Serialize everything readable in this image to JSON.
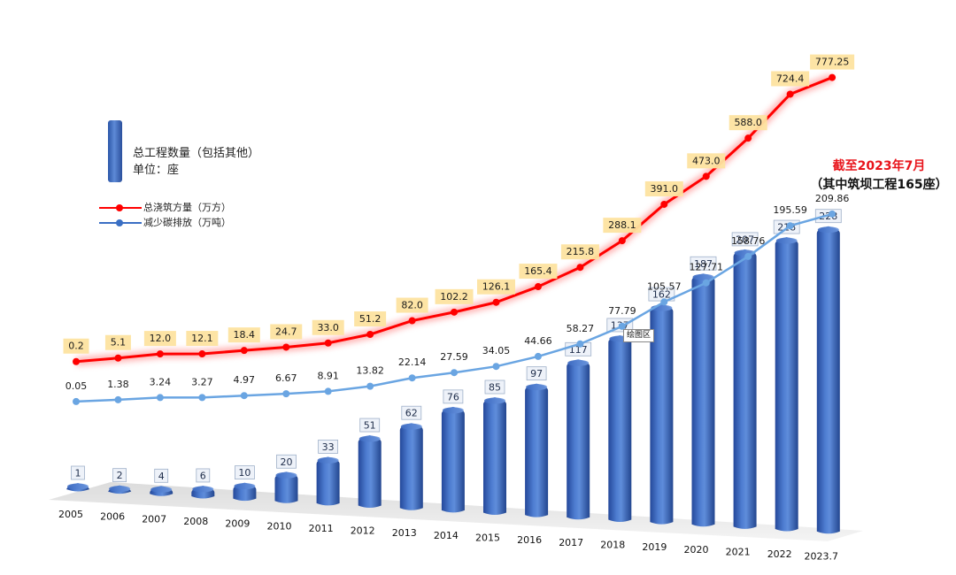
{
  "chart_data": {
    "type": "bar",
    "categories": [
      "2005",
      "2006",
      "2007",
      "2008",
      "2009",
      "2010",
      "2011",
      "2012",
      "2013",
      "2014",
      "2015",
      "2016",
      "2017",
      "2018",
      "2019",
      "2020",
      "2021",
      "2022",
      "2023.7"
    ],
    "series": [
      {
        "name": "总工程数量（包括其他）",
        "type": "bar",
        "unit": "座",
        "color": "#3564b4",
        "values": [
          1,
          2,
          4,
          6,
          10,
          20,
          33,
          51,
          62,
          76,
          85,
          97,
          117,
          137,
          162,
          187,
          207,
          218,
          228
        ]
      },
      {
        "name": "总浇筑方量（万方）",
        "type": "line",
        "color": "#ff0000",
        "labels": [
          "0.2",
          "5.1",
          "12.0",
          "12.1",
          "18.4",
          "24.7",
          "33.0",
          "51.2",
          "82.0",
          "102.2",
          "126.1",
          "165.4",
          "215.8",
          "288.1",
          "391.0",
          "473.0",
          "588.0",
          "724.4",
          "777.25"
        ],
        "values": [
          0.2,
          5.1,
          12.0,
          12.1,
          18.4,
          24.7,
          33.0,
          51.2,
          82.0,
          102.2,
          126.1,
          165.4,
          215.8,
          288.1,
          391.0,
          473.0,
          588.0,
          724.4,
          777.25
        ]
      },
      {
        "name": "减少碳排放（万吨）",
        "type": "line",
        "color": "#6aa5e2",
        "labels": [
          "0.05",
          "1.38",
          "3.24",
          "3.27",
          "4.97",
          "6.67",
          "8.91",
          "13.82",
          "22.14",
          "27.59",
          "34.05",
          "44.66",
          "58.27",
          "77.79",
          "105.57",
          "127.71",
          "158.76",
          "195.59",
          "209.86"
        ],
        "values": [
          0.05,
          1.38,
          3.24,
          3.27,
          4.97,
          6.67,
          8.91,
          13.82,
          22.14,
          27.59,
          34.05,
          44.66,
          58.27,
          77.79,
          105.57,
          127.71,
          158.76,
          195.59,
          209.86
        ]
      }
    ],
    "legend": {
      "bar_title": "总工程数量（包括其他）",
      "bar_unit": "单位：座",
      "line1": "总浇筑方量（万方）",
      "line2": "减少碳排放（万吨）"
    },
    "annotation": {
      "line1": "截至2023年7月",
      "line2": "（其中筑坝工程165座）"
    },
    "plot_area_tag": "绘图区",
    "grid": false
  }
}
